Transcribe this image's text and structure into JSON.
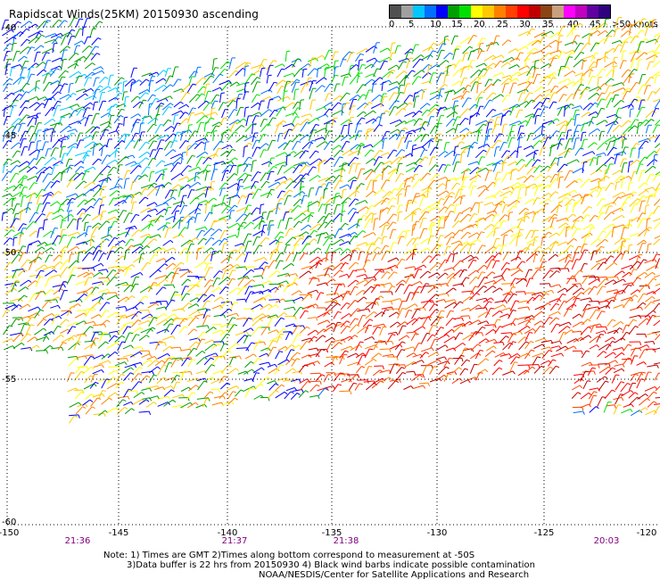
{
  "header": {
    "title": "Rapidscat Winds(25KM) 20150930 ascending"
  },
  "legend": {
    "colors": [
      "#505050",
      "#a0a0a0",
      "#00c8ff",
      "#0070ff",
      "#0000ff",
      "#00a000",
      "#00e000",
      "#ffff00",
      "#ffc800",
      "#ff8000",
      "#ff4000",
      "#ff0000",
      "#c00000",
      "#8b4513",
      "#c8a080",
      "#ff00ff",
      "#c000c0",
      "#6000a0",
      "#300080"
    ],
    "tick_labels": [
      "0",
      "5",
      "10",
      "15",
      "20",
      "25",
      "30",
      "35",
      "40",
      "45",
      ">50 knots"
    ]
  },
  "axes": {
    "y_labels": [
      "-40",
      "-45",
      "-50",
      "-55",
      "-60"
    ],
    "x_labels": [
      "-150",
      "-145",
      "-140",
      "-135",
      "-130",
      "-125",
      "-120"
    ],
    "time_labels": [
      "21:36",
      "21:37",
      "21:38",
      "20:03"
    ]
  },
  "notes": {
    "line1": "Note: 1) Times are GMT 2)Times along bottom correspond to measurement at -50S",
    "line2": "3)Data buffer is 22 hrs from 20150930 4) Black wind barbs indicate possible contamination",
    "line3": "NOAA/NESDIS/Center for Satellite Applications and Research"
  }
}
